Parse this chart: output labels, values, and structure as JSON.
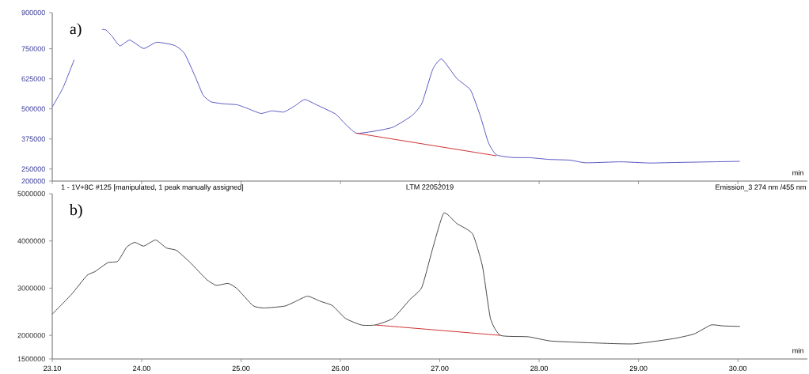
{
  "chart_data": [
    {
      "type": "line",
      "xlabel": "min",
      "xlim": [
        23.1,
        30.7
      ],
      "ylim": [
        200000,
        900000
      ],
      "xticks": [
        {
          "value": 23.1,
          "label": null
        },
        {
          "value": 24,
          "label": null
        },
        {
          "value": 25,
          "label": null
        },
        {
          "value": 26,
          "label": null
        },
        {
          "value": 27,
          "label": null
        },
        {
          "value": 28,
          "label": null
        },
        {
          "value": 29,
          "label": null
        },
        {
          "value": 30,
          "label": null
        }
      ],
      "yticks": [
        200000,
        250000,
        375000,
        500000,
        625000,
        750000,
        900000
      ],
      "tick_labels": "y",
      "marker": "none",
      "line_style": "solid",
      "annotations": [
        "a)",
        "1 - 1V+8C #125 [manipulated, 1 peak manually assigned]",
        "LTM 22052019",
        "Emission_3 274 nm /455 nm"
      ],
      "series": [
        {
          "color": "#4b4bc0",
          "x": [
            23.1,
            23.21,
            23.32,
            23.45,
            23.6,
            23.64,
            23.7,
            23.78,
            23.88,
            24.02,
            24.15,
            24.33,
            24.43,
            24.54,
            24.62,
            24.7,
            24.83,
            24.96,
            25.07,
            25.2,
            25.31,
            25.43,
            25.54,
            25.64,
            25.76,
            25.95,
            26.04,
            26.16,
            26.35,
            26.53,
            26.72,
            26.82,
            26.93,
            27.02,
            27.17,
            27.31,
            27.41,
            27.49,
            27.57,
            27.73,
            27.91,
            28.1,
            28.31,
            28.47,
            28.82,
            29.11,
            29.35,
            29.75,
            30.02
          ],
          "values": [
            508000,
            589000,
            704000,
            null,
            830000,
            828000,
            803000,
            762000,
            786000,
            751000,
            777000,
            764000,
            731000,
            633000,
            556000,
            529000,
            521000,
            517000,
            501000,
            481000,
            492000,
            487000,
            512000,
            539000,
            517000,
            479000,
            441000,
            399000,
            408000,
            424000,
            472000,
            523000,
            665000,
            707000,
            627000,
            578000,
            468000,
            359000,
            309000,
            298000,
            297000,
            290000,
            287000,
            276000,
            280000,
            275000,
            277000,
            280000,
            282000
          ]
        },
        {
          "color": "#cc2020",
          "x": [
            26.16,
            27.57
          ],
          "values": [
            399000,
            305000
          ]
        }
      ]
    },
    {
      "type": "line",
      "xlabel": "min",
      "xlim": [
        23.1,
        30.7
      ],
      "ylim": [
        1500000,
        5000000
      ],
      "xticks": [
        {
          "value": 23.1,
          "label": "23.10"
        },
        {
          "value": 24,
          "label": "24.00"
        },
        {
          "value": 25,
          "label": "25.00"
        },
        {
          "value": 26,
          "label": "26.00"
        },
        {
          "value": 27,
          "label": "27.00"
        },
        {
          "value": 28,
          "label": "28.00"
        },
        {
          "value": 29,
          "label": "29.00"
        },
        {
          "value": 30,
          "label": "30.00"
        }
      ],
      "yticks": [
        1500000,
        2000000,
        3000000,
        4000000,
        5000000
      ],
      "marker": "none",
      "line_style": "solid",
      "annotations": [
        "b)"
      ],
      "series": [
        {
          "color": "#3a3a3a",
          "x": [
            23.1,
            23.29,
            23.45,
            23.53,
            23.66,
            23.76,
            23.85,
            23.93,
            24.02,
            24.14,
            24.25,
            24.35,
            24.49,
            24.65,
            24.75,
            24.87,
            24.96,
            25.12,
            25.23,
            25.44,
            25.55,
            25.67,
            25.8,
            25.92,
            26.05,
            26.21,
            26.35,
            26.53,
            26.7,
            26.82,
            26.93,
            27.04,
            27.17,
            27.33,
            27.43,
            27.51,
            27.61,
            27.89,
            28.12,
            28.55,
            28.95,
            29.35,
            29.56,
            29.73,
            29.85,
            30.02
          ],
          "values": [
            2450000,
            2860000,
            3270000,
            3350000,
            3540000,
            3570000,
            3870000,
            3970000,
            3890000,
            4020000,
            3850000,
            3800000,
            3540000,
            3190000,
            3060000,
            3100000,
            2990000,
            2630000,
            2580000,
            2620000,
            2720000,
            2830000,
            2720000,
            2630000,
            2360000,
            2220000,
            2220000,
            2360000,
            2760000,
            3020000,
            3850000,
            4590000,
            4370000,
            4150000,
            3460000,
            2360000,
            2000000,
            1970000,
            1880000,
            1840000,
            1820000,
            1930000,
            2030000,
            2220000,
            2200000,
            2190000
          ]
        },
        {
          "color": "#cc2020",
          "x": [
            26.35,
            27.61
          ],
          "values": [
            2220000,
            2000000
          ]
        }
      ]
    }
  ]
}
